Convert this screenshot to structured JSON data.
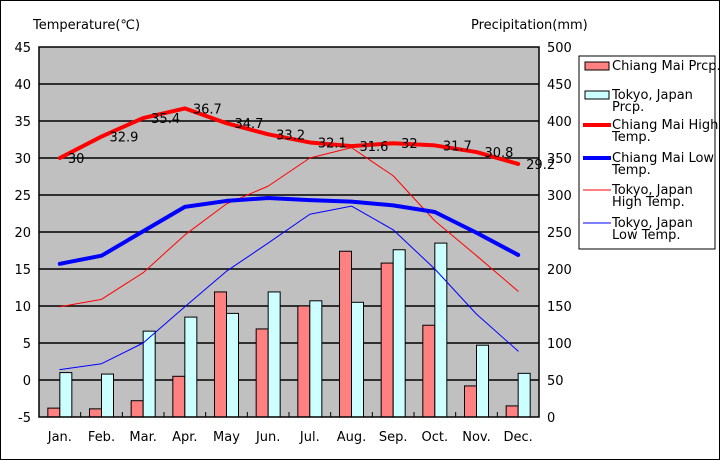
{
  "chart_data": {
    "type": "bar+line",
    "categories": [
      "Jan.",
      "Feb.",
      "Mar.",
      "Apr.",
      "May",
      "Jun.",
      "Jul.",
      "Aug.",
      "Sep.",
      "Oct.",
      "Nov.",
      "Dec."
    ],
    "ylabel_left": "Temperature(℃)",
    "ylabel_right": "Precipitation(mm)",
    "ylim_left": [
      -5,
      45
    ],
    "ylim_right": [
      0,
      500
    ],
    "left_ticks": [
      "-5",
      "0",
      "5",
      "10",
      "15",
      "20",
      "25",
      "30",
      "35",
      "40",
      "45"
    ],
    "right_ticks": [
      "0",
      "50",
      "100",
      "150",
      "200",
      "250",
      "300",
      "350",
      "400",
      "450",
      "500"
    ],
    "legend_position": "right",
    "bars": [
      {
        "name": "Chiang Mai Prcp.",
        "color": "#ff8080",
        "values": [
          12,
          11,
          22,
          55,
          169,
          119,
          150,
          224,
          208,
          124,
          42,
          15
        ]
      },
      {
        "name": "Tokyo, Japan Prcp.",
        "color": "#ccffff",
        "values": [
          60,
          58,
          116,
          135,
          140,
          169,
          157,
          155,
          226,
          235,
          97,
          59
        ]
      }
    ],
    "lines": [
      {
        "name": "Chiang Mai High Temp.",
        "color": "#ff0000",
        "width": 4,
        "labels": true,
        "values": [
          30,
          32.9,
          35.4,
          36.7,
          34.7,
          33.2,
          32.1,
          31.6,
          32,
          31.7,
          30.8,
          29.2
        ],
        "value_labels": [
          "30",
          "32.9",
          "35.4",
          "36.7",
          "34.7",
          "33.2",
          "32.1",
          "31.6",
          "32",
          "31.7",
          "30.8",
          "29.2"
        ]
      },
      {
        "name": "Chiang Mai Low Temp.",
        "color": "#0000ff",
        "width": 4,
        "values": [
          15.7,
          16.8,
          20.1,
          23.4,
          24.2,
          24.6,
          24.3,
          24.1,
          23.6,
          22.7,
          19.9,
          16.9
        ]
      },
      {
        "name": "Tokyo, Japan High Temp.",
        "color": "#ff0000",
        "width": 1,
        "values": [
          9.9,
          10.9,
          14.5,
          19.6,
          23.8,
          26.2,
          30,
          31.4,
          27.6,
          21.5,
          16.8,
          12
        ]
      },
      {
        "name": "Tokyo, Japan Low Temp.",
        "color": "#0000ff",
        "width": 1,
        "values": [
          1.4,
          2.2,
          5,
          9.9,
          14.7,
          18.5,
          22.4,
          23.5,
          20.3,
          15,
          8.9,
          3.9
        ]
      }
    ],
    "legend": [
      {
        "lines": [
          "Chiang Mai Prcp."
        ]
      },
      {
        "lines": [
          "Tokyo, Japan",
          "Prcp."
        ]
      },
      {
        "lines": [
          "Chiang Mai High",
          "Temp."
        ]
      },
      {
        "lines": [
          "Chiang Mai Low",
          "Temp."
        ]
      },
      {
        "lines": [
          "Tokyo, Japan",
          "High Temp."
        ]
      },
      {
        "lines": [
          "Tokyo, Japan",
          "Low Temp."
        ]
      }
    ]
  }
}
